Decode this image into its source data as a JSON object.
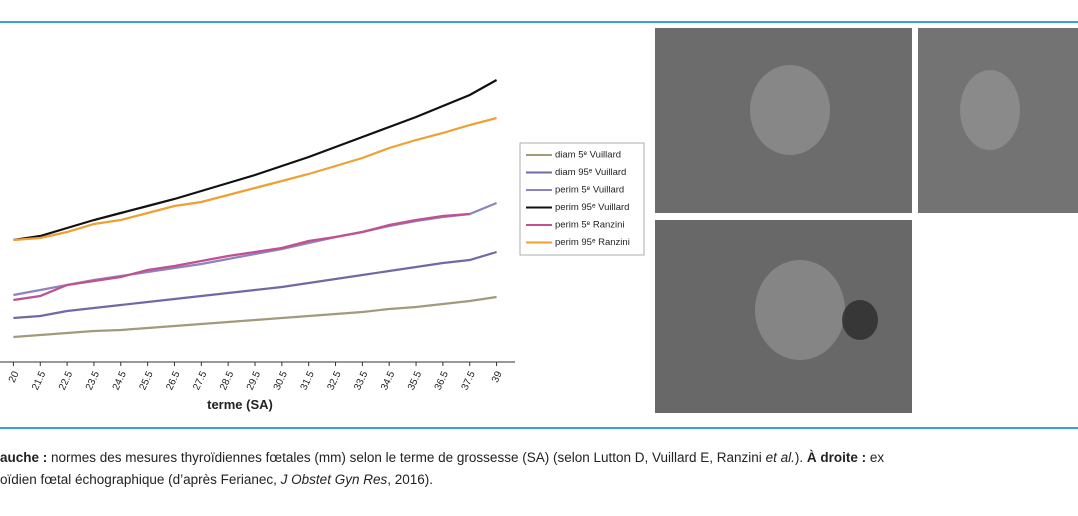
{
  "chart_data": {
    "type": "line",
    "x_label": "terme (SA)",
    "categories": [
      "20",
      "21.5",
      "22.5",
      "23.5",
      "24.5",
      "25.5",
      "26.5",
      "27.5",
      "28.5",
      "29.5",
      "30.5",
      "31.5",
      "32.5",
      "33.5",
      "34.5",
      "35.5",
      "36.5",
      "37.5",
      "39"
    ],
    "ylim": [
      0,
      30
    ],
    "series": [
      {
        "name": "diam 5ᵉ Vuillard",
        "color": "#a39a7a",
        "values": [
          2.8,
          3,
          3.2,
          3.4,
          3.5,
          3.7,
          3.9,
          4.1,
          4.3,
          4.5,
          4.7,
          4.9,
          5.1,
          5.3,
          5.6,
          5.8,
          6.1,
          6.4,
          6.8
        ]
      },
      {
        "name": "diam 95ᵉ Vuillard",
        "color": "#7468a4",
        "values": [
          4.7,
          4.9,
          5.4,
          5.7,
          6,
          6.3,
          6.6,
          6.9,
          7.2,
          7.5,
          7.8,
          8.2,
          8.6,
          9,
          9.4,
          9.8,
          10.2,
          10.5,
          11.3
        ]
      },
      {
        "name": "perim 5ᵉ Vuillard",
        "color": "#8c84c0",
        "values": [
          7,
          7.5,
          8,
          8.5,
          8.9,
          9.3,
          9.7,
          10.1,
          10.6,
          11.1,
          11.6,
          12.2,
          12.8,
          13.3,
          13.9,
          14.4,
          14.8,
          15.1,
          16.2
        ]
      },
      {
        "name": "perim 95ᵉ Vuillard",
        "color": "#111111",
        "values": [
          12.5,
          12.9,
          13.7,
          14.5,
          15.2,
          15.9,
          16.6,
          17.4,
          18.2,
          19,
          19.9,
          20.8,
          21.8,
          22.8,
          23.8,
          24.8,
          25.9,
          27,
          28.5
        ]
      },
      {
        "name": "perim 5ᵉ Ranzini",
        "color": "#c0508f",
        "values": [
          6.5,
          6.9,
          8,
          8.4,
          8.8,
          9.5,
          9.9,
          10.4,
          10.9,
          11.3,
          11.7,
          12.4,
          12.8,
          13.3,
          14,
          14.5,
          14.9,
          15.1,
          null
        ]
      },
      {
        "name": "perim 95ᵉ Ranzini",
        "color": "#f0a030",
        "values": [
          12.5,
          12.7,
          13.3,
          14.1,
          14.5,
          15.2,
          15.9,
          16.3,
          17,
          17.7,
          18.4,
          19.1,
          19.9,
          20.7,
          21.7,
          22.5,
          23.2,
          24,
          24.7
        ]
      }
    ]
  },
  "caption": {
    "line1": [
      "auche :",
      " normes des mesures thyroïdiennes fœtales (mm) selon le terme de grossesse (SA) (selon Lutton D, Vuillard E, Ranzini ",
      "et al.",
      "). ",
      "À droite :",
      " ex"
    ],
    "line2": [
      "oïdien fœtal échographique (d’après Ferianec, ",
      "J Obstet Gyn Res",
      ", 2016)."
    ]
  }
}
